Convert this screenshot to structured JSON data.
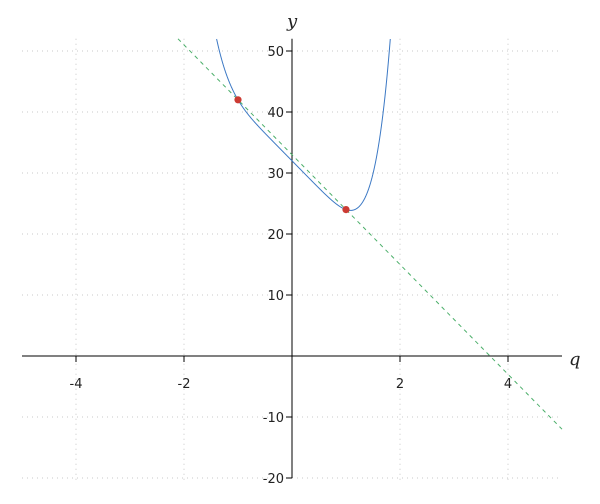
{
  "chart_data": {
    "type": "line",
    "title": "",
    "xlabel": "q",
    "ylabel": "y",
    "xlim": [
      -5,
      5
    ],
    "ylim": [
      -20,
      52
    ],
    "xticks": [
      -4,
      -2,
      2,
      4
    ],
    "yticks": [
      -20,
      -10,
      10,
      20,
      30,
      40,
      50
    ],
    "grid": true,
    "series": [
      {
        "kind": "curve",
        "expression": "q^6 - 9q + 32",
        "color": "#3b78c4",
        "style": "solid"
      },
      {
        "kind": "secant-line",
        "expression": "-9q + 33",
        "color": "#4caf6a",
        "style": "dashed"
      },
      {
        "kind": "points",
        "x": [
          -1,
          1
        ],
        "y": [
          42,
          24
        ],
        "color": "#cc3b33"
      }
    ]
  }
}
